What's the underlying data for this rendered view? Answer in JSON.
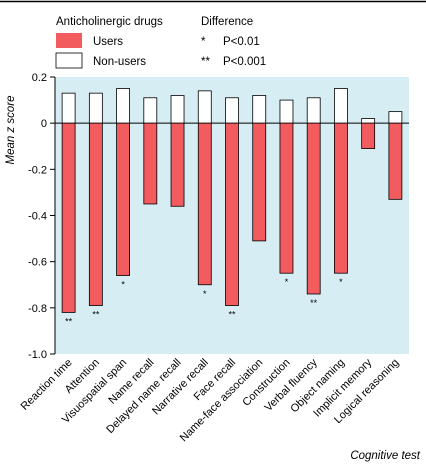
{
  "chart_data": {
    "type": "bar",
    "xlabel": "Cognitive test",
    "ylabel": "Mean z score",
    "ylim": [
      -1.0,
      0.2
    ],
    "yticks": [
      0.2,
      0,
      -0.2,
      -0.4,
      -0.6,
      -0.8,
      -1.0
    ],
    "ytick_labels": [
      "0.2",
      "0",
      "-0.2",
      "-0.4",
      "-0.6",
      "-0.8",
      "-1.0"
    ],
    "grid": false,
    "legend_position": "top-left",
    "categories": [
      "Reaction time",
      "Attention",
      "Visuospatial span",
      "Name recall",
      "Delayed name recall",
      "Narrative recall",
      "Face recall",
      "Name-face association",
      "Construction",
      "Verbal fluency",
      "Object naming",
      "Implicit memory",
      "Logical reasoning"
    ],
    "series": [
      {
        "name": "Users",
        "color": "#f25c5f",
        "values": [
          -0.82,
          -0.79,
          -0.66,
          -0.35,
          -0.36,
          -0.7,
          -0.79,
          -0.51,
          -0.65,
          -0.74,
          -0.65,
          -0.11,
          -0.33
        ],
        "significance": [
          "**",
          "**",
          "*",
          "",
          "",
          "*",
          "**",
          "",
          "*",
          "**",
          "*",
          "",
          ""
        ]
      },
      {
        "name": "Non-users",
        "color": "#ffffff",
        "values": [
          0.13,
          0.13,
          0.15,
          0.11,
          0.12,
          0.14,
          0.11,
          0.12,
          0.1,
          0.11,
          0.15,
          0.02,
          0.05
        ]
      }
    ],
    "legend": {
      "title": "Anticholinergic drugs",
      "entries": [
        "Users",
        "Non-users"
      ]
    },
    "significance_key": {
      "title": "Difference",
      "entries": [
        {
          "symbol": "*",
          "label": "P<0.01"
        },
        {
          "symbol": "**",
          "label": "P<0.001"
        }
      ]
    },
    "plot_background": "#d6eef3"
  }
}
